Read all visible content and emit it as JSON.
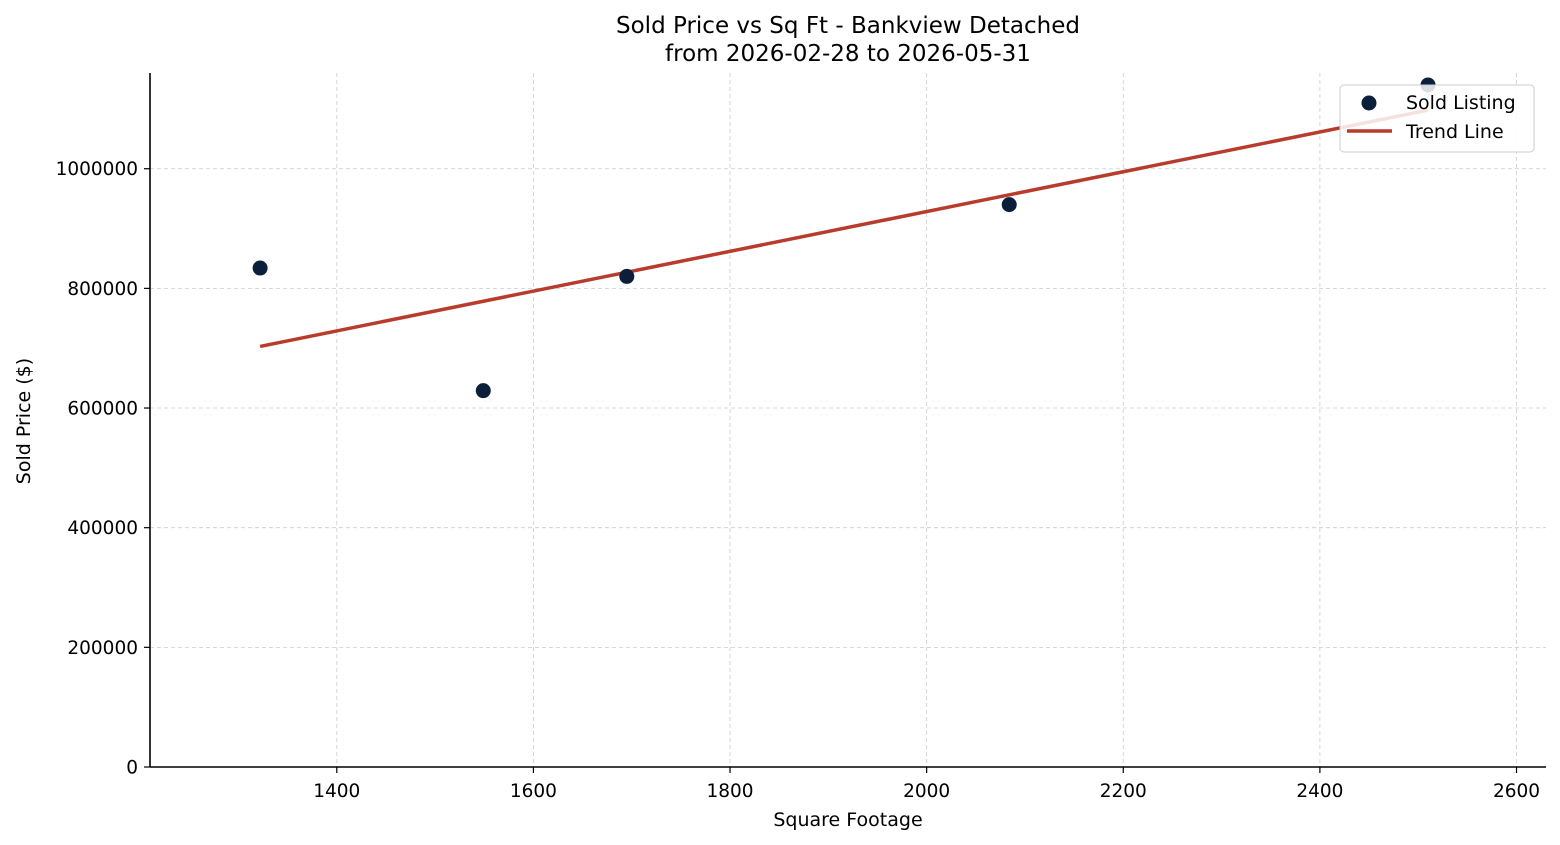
{
  "chart_data": {
    "type": "scatter",
    "title_line1": "Sold Price vs Sq Ft - Bankview Detached",
    "title_line2": "from 2026-02-28 to 2026-05-31",
    "xlabel": "Square Footage",
    "ylabel": "Sold Price ($)",
    "xlim": [
      1210,
      2630
    ],
    "ylim": [
      0,
      1160000
    ],
    "x_ticks": [
      1400,
      1600,
      1800,
      2000,
      2200,
      2400,
      2600
    ],
    "y_ticks": [
      0,
      200000,
      400000,
      600000,
      800000,
      1000000
    ],
    "grid": true,
    "legend_position": "top-right",
    "series": [
      {
        "name": "Sold Listing",
        "kind": "scatter",
        "color": "#0b1f3a",
        "points": [
          {
            "x": 1322,
            "y": 834000
          },
          {
            "x": 1549,
            "y": 629000
          },
          {
            "x": 1695,
            "y": 820000
          },
          {
            "x": 2084,
            "y": 940000
          },
          {
            "x": 2510,
            "y": 1140000
          }
        ]
      },
      {
        "name": "Trend Line",
        "kind": "line",
        "color": "#b83c2c",
        "points": [
          {
            "x": 1322,
            "y": 703000
          },
          {
            "x": 2510,
            "y": 1098000
          }
        ]
      }
    ]
  }
}
